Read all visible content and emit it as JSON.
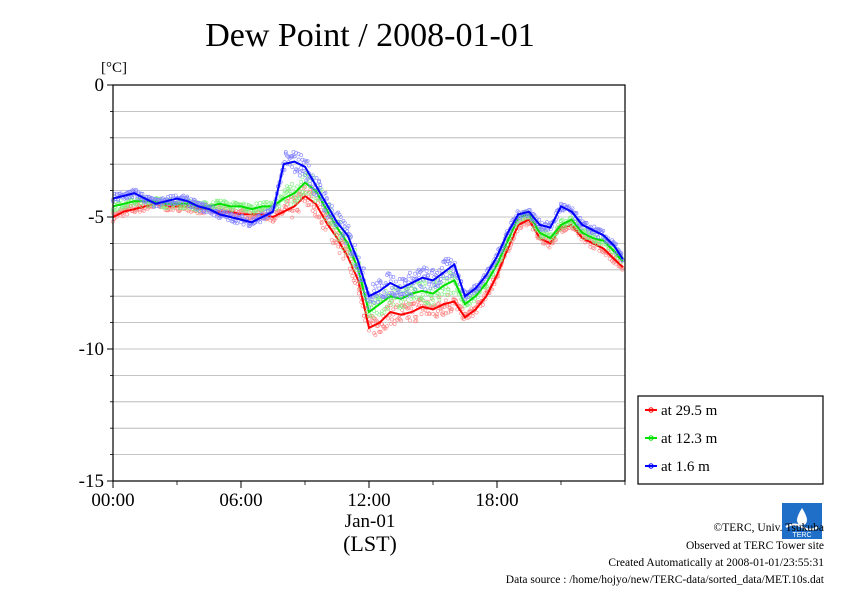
{
  "chart_data": {
    "type": "line",
    "title": "Dew Point / 2008-01-01",
    "ylabel_unit": "[°C]",
    "ylim": [
      -15,
      0
    ],
    "yticks": [
      "0",
      "-5",
      "-10",
      "-15"
    ],
    "yticks_values": [
      0,
      -5,
      -10,
      -15
    ],
    "xlim": [
      0,
      24
    ],
    "xticks": [
      "00:00",
      "06:00",
      "12:00",
      "18:00"
    ],
    "xticks_values": [
      0,
      6,
      12,
      18
    ],
    "x_date_label": "Jan-01",
    "x_axis_label": "(LST)",
    "x": [
      0,
      0.5,
      1,
      1.5,
      2,
      2.5,
      3,
      3.5,
      4,
      4.5,
      5,
      5.5,
      6,
      6.5,
      7,
      7.5,
      8,
      8.5,
      9,
      9.5,
      10,
      10.5,
      11,
      11.5,
      12,
      12.5,
      13,
      13.5,
      14,
      14.5,
      15,
      15.5,
      16,
      16.5,
      17,
      17.5,
      18,
      18.5,
      19,
      19.5,
      20,
      20.5,
      21,
      21.5,
      22,
      22.5,
      23,
      23.5,
      23.9
    ],
    "series": [
      {
        "name": "at 29.5 m",
        "color": "#ff0000",
        "values": [
          -5.0,
          -4.8,
          -4.7,
          -4.6,
          -4.5,
          -4.6,
          -4.6,
          -4.6,
          -4.7,
          -4.7,
          -4.8,
          -4.8,
          -4.9,
          -4.9,
          -4.9,
          -5.0,
          -4.8,
          -4.6,
          -4.2,
          -4.5,
          -5.2,
          -5.8,
          -6.5,
          -7.4,
          -9.2,
          -9.0,
          -8.6,
          -8.7,
          -8.6,
          -8.4,
          -8.5,
          -8.3,
          -8.2,
          -8.8,
          -8.5,
          -8.0,
          -7.2,
          -6.2,
          -5.3,
          -5.1,
          -5.8,
          -6.0,
          -5.4,
          -5.3,
          -5.8,
          -6.0,
          -6.2,
          -6.6,
          -6.9
        ]
      },
      {
        "name": "at 12.3 m",
        "color": "#00e000",
        "values": [
          -4.6,
          -4.5,
          -4.4,
          -4.4,
          -4.4,
          -4.5,
          -4.5,
          -4.5,
          -4.6,
          -4.6,
          -4.5,
          -4.6,
          -4.6,
          -4.7,
          -4.6,
          -4.6,
          -4.3,
          -4.1,
          -3.7,
          -4.0,
          -4.7,
          -5.4,
          -6.0,
          -7.0,
          -8.6,
          -8.3,
          -8.0,
          -8.1,
          -7.9,
          -7.8,
          -7.9,
          -7.6,
          -7.4,
          -8.3,
          -8.0,
          -7.5,
          -6.8,
          -5.9,
          -5.0,
          -4.9,
          -5.6,
          -5.8,
          -5.3,
          -5.1,
          -5.6,
          -5.8,
          -5.9,
          -6.3,
          -6.7
        ]
      },
      {
        "name": "at 1.6 m",
        "color": "#0000ff",
        "values": [
          -4.3,
          -4.2,
          -4.1,
          -4.3,
          -4.5,
          -4.4,
          -4.3,
          -4.4,
          -4.6,
          -4.7,
          -4.9,
          -5.0,
          -5.1,
          -5.2,
          -5.0,
          -4.8,
          -3.0,
          -2.9,
          -3.1,
          -3.8,
          -4.5,
          -5.2,
          -5.7,
          -6.7,
          -8.0,
          -7.8,
          -7.5,
          -7.7,
          -7.5,
          -7.3,
          -7.4,
          -7.1,
          -6.8,
          -8.0,
          -7.7,
          -7.2,
          -6.5,
          -5.6,
          -4.9,
          -4.8,
          -5.3,
          -5.4,
          -4.6,
          -4.8,
          -5.3,
          -5.5,
          -5.7,
          -6.1,
          -6.6
        ]
      }
    ],
    "legend": [
      "at 29.5 m",
      "at 12.3 m",
      "at 1.6 m"
    ],
    "legend_position": "right, below plot",
    "grid": "horizontal"
  },
  "footer": {
    "line1": "©TERC, Univ. Tsukuba",
    "line2": "Observed at TERC Tower site",
    "line3": "Created Automatically at 2008-01-01/23:55:31",
    "line4": "Data source : /home/hojyo/new/TERC-data/sorted_data/MET.10s.dat"
  },
  "logo": {
    "text": "TERC",
    "color": "#1f6fc8"
  }
}
